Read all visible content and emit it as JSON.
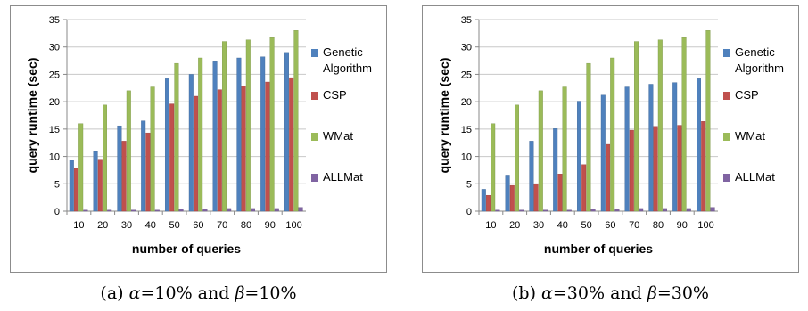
{
  "captions": [
    {
      "prefix": "(a) ",
      "alpha_sym": "α",
      "alpha_val": "=10% and ",
      "beta_sym": "β",
      "beta_val": "=10%"
    },
    {
      "prefix": "(b) ",
      "alpha_sym": "α",
      "alpha_val": "=30% and ",
      "beta_sym": "β",
      "beta_val": "=30%"
    }
  ],
  "chart_data": [
    {
      "type": "bar",
      "title": "",
      "xlabel": "number of queries",
      "ylabel": "query runtime (sec)",
      "ylim": [
        0,
        35
      ],
      "yticks": [
        0,
        5,
        10,
        15,
        20,
        25,
        30,
        35
      ],
      "grid": true,
      "legend_position": "right",
      "categories": [
        "10",
        "20",
        "30",
        "40",
        "50",
        "60",
        "70",
        "80",
        "90",
        "100"
      ],
      "series": [
        {
          "name": "Genetic Algorithm",
          "color": "#4f81bd",
          "values": [
            9.3,
            10.9,
            15.6,
            16.5,
            24.2,
            25.0,
            27.3,
            28.0,
            28.2,
            29.0
          ]
        },
        {
          "name": "CSP",
          "color": "#c0504d",
          "values": [
            7.8,
            9.5,
            12.8,
            14.3,
            19.6,
            21.0,
            22.2,
            22.9,
            23.6,
            24.4
          ]
        },
        {
          "name": "WMat",
          "color": "#9bbb59",
          "values": [
            16.0,
            19.4,
            22.0,
            22.7,
            27.0,
            28.0,
            31.0,
            31.3,
            31.7,
            33.0
          ]
        },
        {
          "name": "ALLMat",
          "color": "#8064a2",
          "values": [
            0.2,
            0.2,
            0.2,
            0.2,
            0.4,
            0.4,
            0.5,
            0.5,
            0.5,
            0.7
          ]
        }
      ]
    },
    {
      "type": "bar",
      "title": "",
      "xlabel": "number of queries",
      "ylabel": "query runtime (sec)",
      "ylim": [
        0,
        35
      ],
      "yticks": [
        0,
        5,
        10,
        15,
        20,
        25,
        30,
        35
      ],
      "grid": true,
      "legend_position": "right",
      "categories": [
        "10",
        "20",
        "30",
        "40",
        "50",
        "60",
        "70",
        "80",
        "90",
        "100"
      ],
      "series": [
        {
          "name": "Genetic Algorithm",
          "color": "#4f81bd",
          "values": [
            4.0,
            6.6,
            12.8,
            15.1,
            20.1,
            21.2,
            22.7,
            23.2,
            23.5,
            24.2
          ]
        },
        {
          "name": "CSP",
          "color": "#c0504d",
          "values": [
            2.9,
            4.7,
            5.0,
            6.8,
            8.5,
            12.2,
            14.8,
            15.5,
            15.7,
            16.4
          ]
        },
        {
          "name": "WMat",
          "color": "#9bbb59",
          "values": [
            16.0,
            19.4,
            22.0,
            22.7,
            27.0,
            28.0,
            31.0,
            31.3,
            31.7,
            33.0
          ]
        },
        {
          "name": "ALLMat",
          "color": "#8064a2",
          "values": [
            0.2,
            0.2,
            0.2,
            0.2,
            0.4,
            0.4,
            0.5,
            0.5,
            0.5,
            0.7
          ]
        }
      ]
    }
  ]
}
